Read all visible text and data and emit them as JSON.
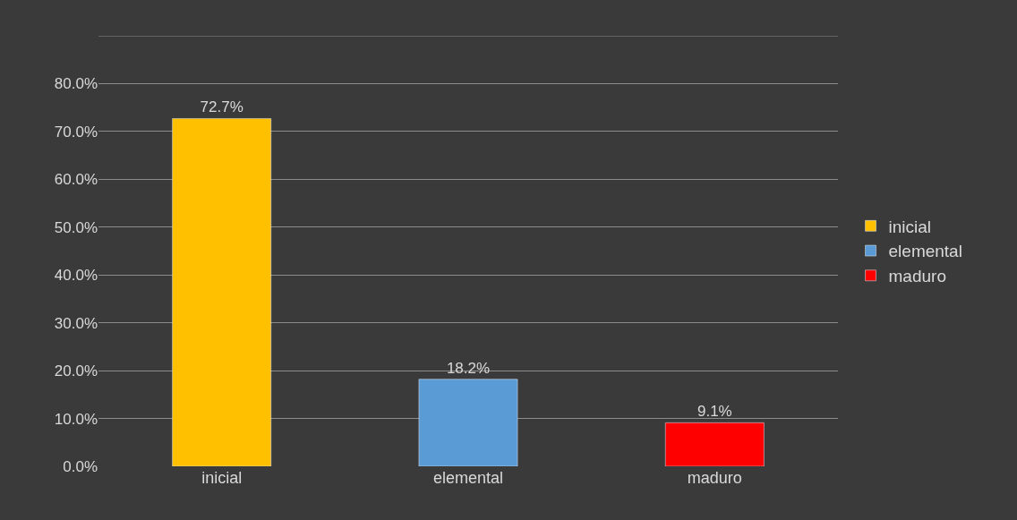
{
  "chart_data": {
    "type": "bar",
    "categories": [
      "inicial",
      "elemental",
      "maduro"
    ],
    "series": [
      {
        "name": "inicial",
        "color": "#ffc000",
        "values": [
          72.7,
          null,
          null
        ],
        "value_labels": [
          "72.7%",
          null,
          null
        ]
      },
      {
        "name": "elemental",
        "color": "#5b9bd5",
        "values": [
          null,
          18.2,
          null
        ],
        "value_labels": [
          null,
          "18.2%",
          null
        ]
      },
      {
        "name": "maduro",
        "color": "#ff0000",
        "values": [
          null,
          null,
          9.1
        ],
        "value_labels": [
          null,
          null,
          "9.1%"
        ]
      }
    ],
    "ylim": [
      0,
      90
    ],
    "yticks": [
      {
        "value": 0,
        "label": "0.0%"
      },
      {
        "value": 10,
        "label": "10.0%"
      },
      {
        "value": 20,
        "label": "20.0%"
      },
      {
        "value": 30,
        "label": "30.0%"
      },
      {
        "value": 40,
        "label": "40.0%"
      },
      {
        "value": 50,
        "label": "50.0%"
      },
      {
        "value": 60,
        "label": "60.0%"
      },
      {
        "value": 70,
        "label": "70.0%"
      },
      {
        "value": 80,
        "label": "80.0%"
      },
      {
        "value": 90,
        "label": null
      }
    ],
    "grid": "y",
    "legend": "right"
  }
}
